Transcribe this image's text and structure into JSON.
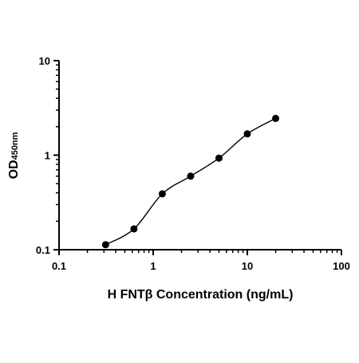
{
  "chart_data": {
    "type": "scatter",
    "title": "",
    "xlabel": "H FNTβ Concentration (ng/mL)",
    "ylabel": {
      "main": "OD",
      "subscript": "450nm"
    },
    "xscale": "log",
    "yscale": "log",
    "xlim": [
      0.1,
      100
    ],
    "ylim": [
      0.1,
      10
    ],
    "xticks": [
      0.1,
      1,
      10,
      100
    ],
    "xtick_labels": [
      "0.1",
      "1",
      "10",
      "100"
    ],
    "yticks": [
      0.1,
      1,
      10
    ],
    "ytick_labels": [
      "0.1",
      "1",
      "10"
    ],
    "grid": false,
    "legend": "none",
    "series": [
      {
        "points": [
          {
            "x": 0.3125,
            "y": 0.113
          },
          {
            "x": 0.625,
            "y": 0.166
          },
          {
            "x": 1.25,
            "y": 0.39
          },
          {
            "x": 2.5,
            "y": 0.6
          },
          {
            "x": 5,
            "y": 0.93
          },
          {
            "x": 10,
            "y": 1.68
          },
          {
            "x": 20,
            "y": 2.45
          }
        ],
        "marker": "filled-circle",
        "fit": "smooth-curve",
        "color": "#000000"
      }
    ]
  }
}
